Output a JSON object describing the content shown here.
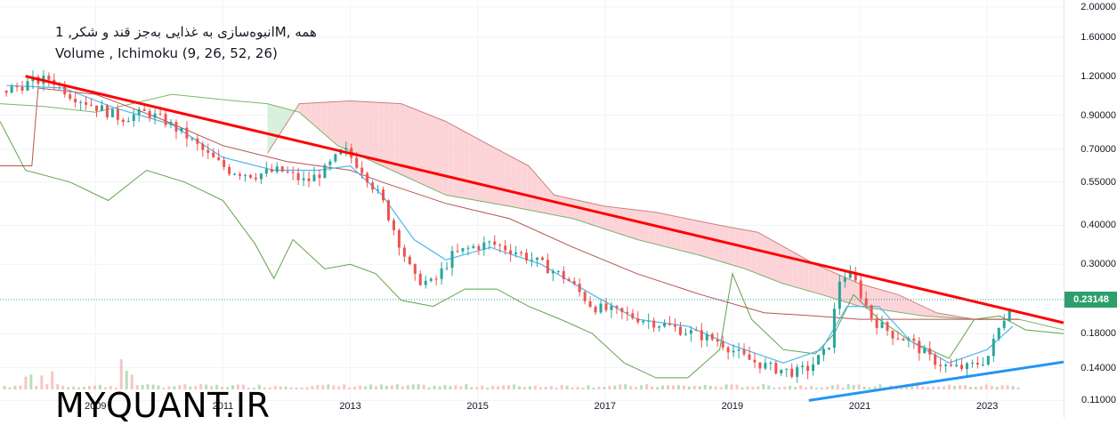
{
  "legend": {
    "title": "انبوه‌سازی به غذایی به‌جز قند و شکر, 1M, همه",
    "indicators": "Volume , Ichimoku (9, 26, 52, 26)"
  },
  "watermark": "MYQUANT.IR",
  "colors": {
    "up": "#26a69a",
    "down": "#ef5350",
    "trend_down": "#ff0000",
    "trend_up": "#2196f3",
    "cloud_bear": "#fccfd4",
    "cloud_bull": "#d4efd8",
    "lagging": "#5ea34a",
    "conversion": "#4eb6f0",
    "base": "#b2554f",
    "current_label": "#2e9e6b"
  },
  "chart_data": {
    "type": "candlestick",
    "scale": "log",
    "ylim": [
      0.098,
      2.05
    ],
    "xlim": [
      2007.5,
      2024.2
    ],
    "current_price": 0.23148,
    "y_ticks": [
      2.0,
      1.6,
      1.2,
      0.9,
      0.7,
      0.55,
      0.4,
      0.3,
      0.18,
      0.14,
      0.11
    ],
    "y_tick_labels": [
      "2.00000",
      "1.60000",
      "1.20000",
      "0.90000",
      "0.70000",
      "0.55000",
      "0.40000",
      "0.30000",
      "0.18000",
      "0.14000",
      "0.11000"
    ],
    "x_ticks": [
      2009,
      2011,
      2013,
      2015,
      2017,
      2019,
      2021,
      2023
    ],
    "x_tick_labels": [
      "2009",
      "2011",
      "2013",
      "2015",
      "2017",
      "2019",
      "2021",
      "2023"
    ],
    "price_path": [
      [
        2007.6,
        1.08
      ],
      [
        2008.0,
        1.15
      ],
      [
        2008.3,
        1.18
      ],
      [
        2008.6,
        1.05
      ],
      [
        2009.0,
        0.96
      ],
      [
        2009.4,
        0.88
      ],
      [
        2009.8,
        0.92
      ],
      [
        2010.1,
        0.86
      ],
      [
        2010.4,
        0.78
      ],
      [
        2010.8,
        0.66
      ],
      [
        2011.1,
        0.6
      ],
      [
        2011.5,
        0.58
      ],
      [
        2011.9,
        0.6
      ],
      [
        2012.3,
        0.55
      ],
      [
        2012.6,
        0.6
      ],
      [
        2012.9,
        0.7
      ],
      [
        2013.2,
        0.6
      ],
      [
        2013.5,
        0.48
      ],
      [
        2013.8,
        0.34
      ],
      [
        2014.0,
        0.27
      ],
      [
        2014.3,
        0.26
      ],
      [
        2014.6,
        0.32
      ],
      [
        2014.9,
        0.34
      ],
      [
        2015.2,
        0.35
      ],
      [
        2015.6,
        0.33
      ],
      [
        2016.0,
        0.3
      ],
      [
        2016.4,
        0.27
      ],
      [
        2016.8,
        0.22
      ],
      [
        2017.2,
        0.21
      ],
      [
        2017.6,
        0.2
      ],
      [
        2018.0,
        0.19
      ],
      [
        2018.4,
        0.18
      ],
      [
        2018.8,
        0.17
      ],
      [
        2019.2,
        0.15
      ],
      [
        2019.6,
        0.14
      ],
      [
        2020.0,
        0.135
      ],
      [
        2020.2,
        0.14
      ],
      [
        2020.5,
        0.16
      ],
      [
        2020.7,
        0.28
      ],
      [
        2020.9,
        0.27
      ],
      [
        2021.2,
        0.2
      ],
      [
        2021.5,
        0.18
      ],
      [
        2021.8,
        0.17
      ],
      [
        2022.1,
        0.15
      ],
      [
        2022.4,
        0.14
      ],
      [
        2022.7,
        0.14
      ],
      [
        2023.0,
        0.15
      ],
      [
        2023.2,
        0.19
      ],
      [
        2023.4,
        0.232
      ]
    ],
    "conversion_path": [
      [
        2007.6,
        1.12
      ],
      [
        2008.5,
        1.1
      ],
      [
        2009.3,
        0.95
      ],
      [
        2010.2,
        0.84
      ],
      [
        2011.0,
        0.66
      ],
      [
        2011.8,
        0.6
      ],
      [
        2012.5,
        0.6
      ],
      [
        2013.0,
        0.62
      ],
      [
        2013.5,
        0.5
      ],
      [
        2014.0,
        0.36
      ],
      [
        2014.5,
        0.31
      ],
      [
        2015.2,
        0.34
      ],
      [
        2016.0,
        0.3
      ],
      [
        2016.8,
        0.24
      ],
      [
        2017.5,
        0.2
      ],
      [
        2018.3,
        0.19
      ],
      [
        2019.0,
        0.165
      ],
      [
        2019.8,
        0.145
      ],
      [
        2020.4,
        0.16
      ],
      [
        2020.8,
        0.22
      ],
      [
        2021.3,
        0.22
      ],
      [
        2021.8,
        0.17
      ],
      [
        2022.4,
        0.145
      ],
      [
        2023.0,
        0.16
      ],
      [
        2023.4,
        0.19
      ]
    ],
    "base_path": [
      [
        2007.5,
        0.62
      ],
      [
        2008.0,
        0.62
      ],
      [
        2008.1,
        1.1
      ],
      [
        2009.0,
        1.05
      ],
      [
        2010.0,
        0.88
      ],
      [
        2011.0,
        0.72
      ],
      [
        2012.0,
        0.64
      ],
      [
        2013.0,
        0.6
      ],
      [
        2013.5,
        0.55
      ],
      [
        2014.5,
        0.47
      ],
      [
        2015.5,
        0.42
      ],
      [
        2016.5,
        0.34
      ],
      [
        2017.5,
        0.28
      ],
      [
        2018.5,
        0.24
      ],
      [
        2019.5,
        0.21
      ],
      [
        2020.3,
        0.205
      ],
      [
        2021.0,
        0.2
      ],
      [
        2022.0,
        0.2
      ],
      [
        2022.6,
        0.2
      ],
      [
        2023.5,
        0.2
      ]
    ],
    "lagging_path": [
      [
        2007.5,
        0.86
      ],
      [
        2007.9,
        0.6
      ],
      [
        2008.6,
        0.55
      ],
      [
        2009.2,
        0.48
      ],
      [
        2009.8,
        0.6
      ],
      [
        2010.4,
        0.55
      ],
      [
        2011.0,
        0.48
      ],
      [
        2011.5,
        0.35
      ],
      [
        2011.8,
        0.27
      ],
      [
        2012.1,
        0.36
      ],
      [
        2012.6,
        0.29
      ],
      [
        2013.0,
        0.3
      ],
      [
        2013.4,
        0.28
      ],
      [
        2013.8,
        0.23
      ],
      [
        2014.3,
        0.22
      ],
      [
        2014.8,
        0.25
      ],
      [
        2015.3,
        0.25
      ],
      [
        2015.8,
        0.22
      ],
      [
        2016.3,
        0.2
      ],
      [
        2016.8,
        0.18
      ],
      [
        2017.3,
        0.145
      ],
      [
        2017.8,
        0.13
      ],
      [
        2018.3,
        0.13
      ],
      [
        2018.8,
        0.16
      ],
      [
        2019.0,
        0.28
      ],
      [
        2019.3,
        0.2
      ],
      [
        2019.8,
        0.16
      ],
      [
        2020.3,
        0.155
      ],
      [
        2020.6,
        0.18
      ],
      [
        2020.9,
        0.24
      ],
      [
        2021.3,
        0.2
      ],
      [
        2021.8,
        0.17
      ],
      [
        2022.4,
        0.15
      ],
      [
        2022.8,
        0.2
      ],
      [
        2023.2,
        0.205
      ],
      [
        2023.6,
        0.185
      ],
      [
        2024.2,
        0.18
      ]
    ],
    "span_a_path": [
      [
        2007.5,
        0.98
      ],
      [
        2008.2,
        0.96
      ],
      [
        2009.0,
        0.92
      ],
      [
        2010.2,
        1.05
      ],
      [
        2011.2,
        1.0
      ],
      [
        2011.7,
        0.98
      ],
      [
        2012.2,
        0.92
      ],
      [
        2012.8,
        0.72
      ],
      [
        2013.5,
        0.62
      ],
      [
        2014.5,
        0.5
      ],
      [
        2015.5,
        0.46
      ],
      [
        2016.5,
        0.42
      ],
      [
        2017.5,
        0.36
      ],
      [
        2018.5,
        0.32
      ],
      [
        2019.2,
        0.29
      ],
      [
        2019.8,
        0.26
      ],
      [
        2020.4,
        0.24
      ],
      [
        2021.0,
        0.22
      ],
      [
        2022.0,
        0.205
      ],
      [
        2022.8,
        0.2
      ],
      [
        2023.5,
        0.2
      ],
      [
        2024.2,
        0.185
      ]
    ],
    "span_b_path": [
      [
        2011.7,
        0.68
      ],
      [
        2012.2,
        0.98
      ],
      [
        2013.0,
        1.0
      ],
      [
        2013.8,
        0.98
      ],
      [
        2014.5,
        0.86
      ],
      [
        2015.2,
        0.72
      ],
      [
        2015.8,
        0.62
      ],
      [
        2016.2,
        0.5
      ],
      [
        2017.0,
        0.46
      ],
      [
        2017.8,
        0.44
      ],
      [
        2018.8,
        0.4
      ],
      [
        2019.4,
        0.38
      ],
      [
        2020.3,
        0.3
      ],
      [
        2021.0,
        0.26
      ],
      [
        2021.6,
        0.24
      ],
      [
        2022.2,
        0.21
      ],
      [
        2022.8,
        0.2
      ],
      [
        2023.5,
        0.2
      ]
    ],
    "trendlines": [
      {
        "name": "resistance",
        "points": [
          [
            2007.9,
            1.2
          ],
          [
            2024.2,
            0.195
          ]
        ]
      },
      {
        "name": "support",
        "points": [
          [
            2020.2,
            0.11
          ],
          [
            2024.2,
            0.146
          ]
        ]
      }
    ]
  }
}
